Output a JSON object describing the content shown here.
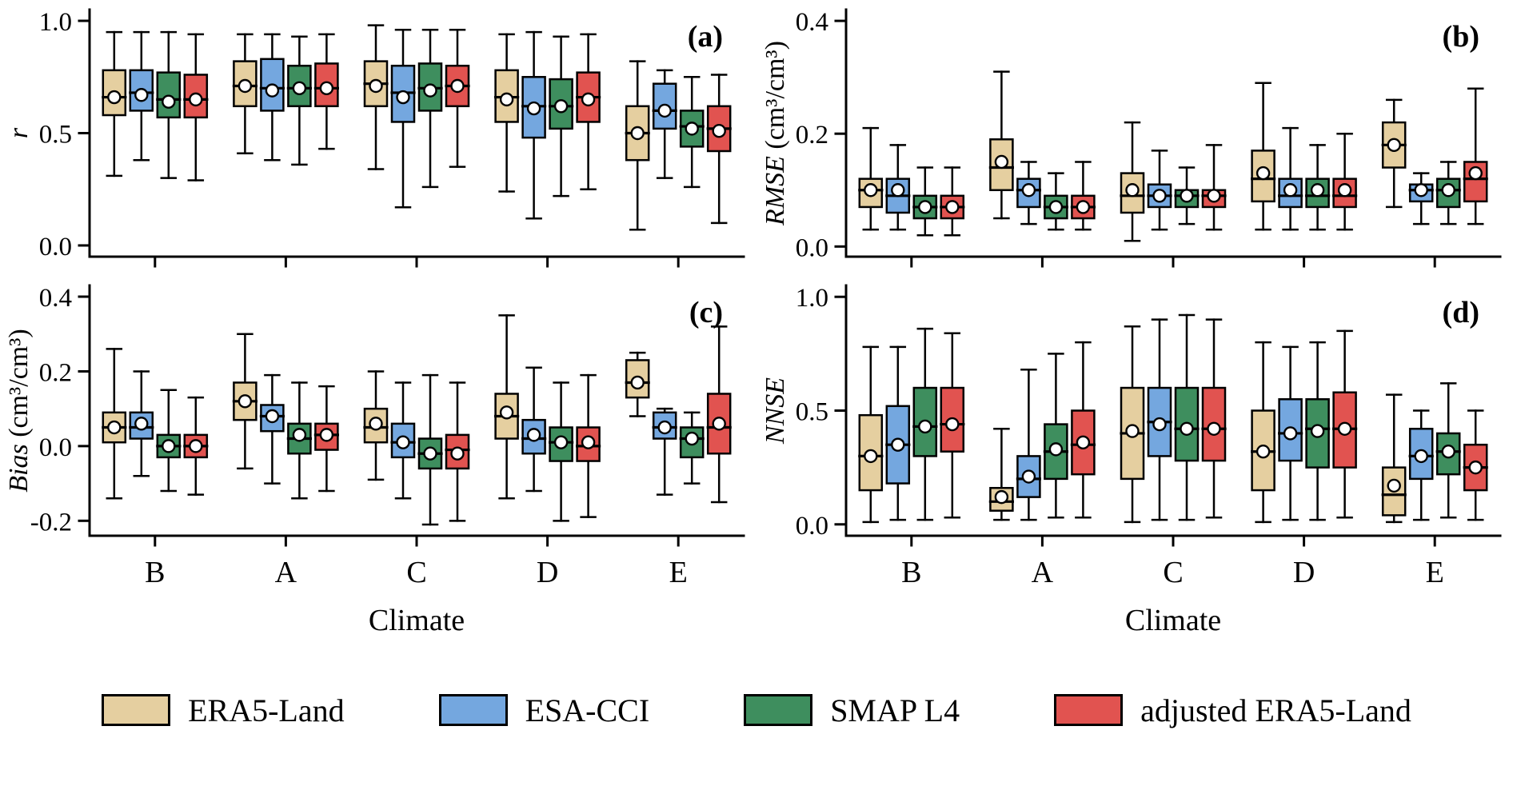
{
  "legend": {
    "entries": [
      {
        "label": "ERA5-Land",
        "color": "#E5CFA0"
      },
      {
        "label": "ESA-CCI",
        "color": "#74A7DF"
      },
      {
        "label": "SMAP L4",
        "color": "#3E8E5E"
      },
      {
        "label": "adjusted ERA5-Land",
        "color": "#E15350"
      }
    ]
  },
  "chart_data": [
    {
      "type": "boxplot",
      "panel_label": "(a)",
      "ylabel": "r",
      "ylabel_unit": "",
      "xlabel": "",
      "show_x_labels": false,
      "categories": [
        "B",
        "A",
        "C",
        "D",
        "E"
      ],
      "ylim": [
        -0.05,
        1.05
      ],
      "ytick_values": [
        0.0,
        0.5,
        1.0
      ],
      "ytick_labels": [
        "0.0",
        "0.5",
        "1.0"
      ],
      "box_format": [
        "whisker_low",
        "q1",
        "median",
        "q3",
        "whisker_high",
        "mean"
      ],
      "series": [
        {
          "name": "ERA5-Land",
          "color": "#E5CFA0",
          "boxes": [
            [
              0.31,
              0.58,
              0.66,
              0.78,
              0.95,
              0.66
            ],
            [
              0.41,
              0.62,
              0.71,
              0.82,
              0.94,
              0.71
            ],
            [
              0.34,
              0.62,
              0.72,
              0.82,
              0.98,
              0.71
            ],
            [
              0.24,
              0.55,
              0.66,
              0.78,
              0.94,
              0.65
            ],
            [
              0.07,
              0.38,
              0.5,
              0.62,
              0.82,
              0.5
            ]
          ]
        },
        {
          "name": "ESA-CCI",
          "color": "#74A7DF",
          "boxes": [
            [
              0.38,
              0.6,
              0.68,
              0.78,
              0.95,
              0.67
            ],
            [
              0.38,
              0.6,
              0.7,
              0.83,
              0.94,
              0.69
            ],
            [
              0.17,
              0.55,
              0.68,
              0.8,
              0.96,
              0.66
            ],
            [
              0.12,
              0.48,
              0.62,
              0.75,
              0.95,
              0.61
            ],
            [
              0.3,
              0.52,
              0.6,
              0.72,
              0.78,
              0.6
            ]
          ]
        },
        {
          "name": "SMAP L4",
          "color": "#3E8E5E",
          "boxes": [
            [
              0.3,
              0.57,
              0.65,
              0.77,
              0.95,
              0.64
            ],
            [
              0.36,
              0.62,
              0.7,
              0.8,
              0.93,
              0.7
            ],
            [
              0.26,
              0.6,
              0.7,
              0.81,
              0.96,
              0.69
            ],
            [
              0.22,
              0.52,
              0.62,
              0.74,
              0.93,
              0.62
            ],
            [
              0.26,
              0.44,
              0.53,
              0.6,
              0.75,
              0.52
            ]
          ]
        },
        {
          "name": "adjusted ERA5-Land",
          "color": "#E15350",
          "boxes": [
            [
              0.29,
              0.57,
              0.65,
              0.76,
              0.94,
              0.65
            ],
            [
              0.43,
              0.62,
              0.7,
              0.81,
              0.94,
              0.7
            ],
            [
              0.35,
              0.62,
              0.71,
              0.8,
              0.96,
              0.71
            ],
            [
              0.25,
              0.55,
              0.66,
              0.77,
              0.94,
              0.65
            ],
            [
              0.1,
              0.42,
              0.52,
              0.62,
              0.76,
              0.51
            ]
          ]
        }
      ]
    },
    {
      "type": "boxplot",
      "panel_label": "(b)",
      "ylabel": "RMSE",
      "ylabel_unit": " (cm³/cm³)",
      "xlabel": "",
      "show_x_labels": false,
      "categories": [
        "B",
        "A",
        "C",
        "D",
        "E"
      ],
      "ylim": [
        -0.018,
        0.42
      ],
      "ytick_values": [
        0.0,
        0.2,
        0.4
      ],
      "ytick_labels": [
        "0.0",
        "0.2",
        "0.4"
      ],
      "box_format": [
        "whisker_low",
        "q1",
        "median",
        "q3",
        "whisker_high",
        "mean"
      ],
      "series": [
        {
          "name": "ERA5-Land",
          "color": "#E5CFA0",
          "boxes": [
            [
              0.03,
              0.07,
              0.1,
              0.12,
              0.21,
              0.1
            ],
            [
              0.05,
              0.1,
              0.14,
              0.19,
              0.31,
              0.15
            ],
            [
              0.01,
              0.06,
              0.09,
              0.13,
              0.22,
              0.1
            ],
            [
              0.03,
              0.08,
              0.12,
              0.17,
              0.29,
              0.13
            ],
            [
              0.07,
              0.14,
              0.18,
              0.22,
              0.26,
              0.18
            ]
          ]
        },
        {
          "name": "ESA-CCI",
          "color": "#74A7DF",
          "boxes": [
            [
              0.03,
              0.06,
              0.09,
              0.12,
              0.18,
              0.1
            ],
            [
              0.04,
              0.07,
              0.1,
              0.12,
              0.15,
              0.1
            ],
            [
              0.03,
              0.07,
              0.09,
              0.11,
              0.17,
              0.09
            ],
            [
              0.03,
              0.07,
              0.09,
              0.12,
              0.21,
              0.1
            ],
            [
              0.04,
              0.08,
              0.1,
              0.11,
              0.13,
              0.1
            ]
          ]
        },
        {
          "name": "SMAP L4",
          "color": "#3E8E5E",
          "boxes": [
            [
              0.02,
              0.05,
              0.07,
              0.09,
              0.14,
              0.07
            ],
            [
              0.03,
              0.05,
              0.07,
              0.09,
              0.13,
              0.07
            ],
            [
              0.04,
              0.07,
              0.09,
              0.1,
              0.14,
              0.09
            ],
            [
              0.03,
              0.07,
              0.09,
              0.12,
              0.18,
              0.1
            ],
            [
              0.04,
              0.07,
              0.1,
              0.12,
              0.15,
              0.1
            ]
          ]
        },
        {
          "name": "adjusted ERA5-Land",
          "color": "#E15350",
          "boxes": [
            [
              0.02,
              0.05,
              0.07,
              0.09,
              0.14,
              0.07
            ],
            [
              0.03,
              0.05,
              0.07,
              0.09,
              0.15,
              0.07
            ],
            [
              0.03,
              0.07,
              0.09,
              0.1,
              0.18,
              0.09
            ],
            [
              0.03,
              0.07,
              0.09,
              0.12,
              0.2,
              0.1
            ],
            [
              0.04,
              0.08,
              0.12,
              0.15,
              0.28,
              0.13
            ]
          ]
        }
      ]
    },
    {
      "type": "boxplot",
      "panel_label": "(c)",
      "ylabel": "Bias",
      "ylabel_unit": " (cm³/cm³)",
      "xlabel": "Climate",
      "show_x_labels": true,
      "categories": [
        "B",
        "A",
        "C",
        "D",
        "E"
      ],
      "ylim": [
        -0.24,
        0.43
      ],
      "ytick_values": [
        -0.2,
        0.0,
        0.2,
        0.4
      ],
      "ytick_labels": [
        "-0.2",
        "0.0",
        "0.2",
        "0.4"
      ],
      "box_format": [
        "whisker_low",
        "q1",
        "median",
        "q3",
        "whisker_high",
        "mean"
      ],
      "series": [
        {
          "name": "ERA5-Land",
          "color": "#E5CFA0",
          "boxes": [
            [
              -0.14,
              0.01,
              0.05,
              0.09,
              0.26,
              0.05
            ],
            [
              -0.06,
              0.07,
              0.12,
              0.17,
              0.3,
              0.12
            ],
            [
              -0.09,
              0.01,
              0.05,
              0.1,
              0.2,
              0.06
            ],
            [
              -0.14,
              0.02,
              0.08,
              0.14,
              0.35,
              0.09
            ],
            [
              0.08,
              0.13,
              0.17,
              0.23,
              0.25,
              0.17
            ]
          ]
        },
        {
          "name": "ESA-CCI",
          "color": "#74A7DF",
          "boxes": [
            [
              -0.08,
              0.02,
              0.05,
              0.09,
              0.2,
              0.06
            ],
            [
              -0.1,
              0.04,
              0.08,
              0.11,
              0.19,
              0.08
            ],
            [
              -0.14,
              -0.03,
              0.01,
              0.06,
              0.17,
              0.01
            ],
            [
              -0.12,
              -0.02,
              0.02,
              0.07,
              0.21,
              0.03
            ],
            [
              -0.13,
              0.02,
              0.05,
              0.09,
              0.1,
              0.05
            ]
          ]
        },
        {
          "name": "SMAP L4",
          "color": "#3E8E5E",
          "boxes": [
            [
              -0.12,
              -0.03,
              0.0,
              0.03,
              0.15,
              0.0
            ],
            [
              -0.14,
              -0.02,
              0.02,
              0.06,
              0.17,
              0.03
            ],
            [
              -0.21,
              -0.06,
              -0.02,
              0.02,
              0.19,
              -0.02
            ],
            [
              -0.2,
              -0.04,
              0.01,
              0.05,
              0.17,
              0.01
            ],
            [
              -0.1,
              -0.03,
              0.02,
              0.05,
              0.09,
              0.02
            ]
          ]
        },
        {
          "name": "adjusted ERA5-Land",
          "color": "#E15350",
          "boxes": [
            [
              -0.13,
              -0.03,
              0.0,
              0.03,
              0.13,
              0.0
            ],
            [
              -0.12,
              -0.01,
              0.03,
              0.06,
              0.16,
              0.03
            ],
            [
              -0.2,
              -0.06,
              -0.01,
              0.03,
              0.17,
              -0.02
            ],
            [
              -0.19,
              -0.04,
              0.0,
              0.05,
              0.19,
              0.01
            ],
            [
              -0.15,
              -0.02,
              0.05,
              0.14,
              0.32,
              0.06
            ]
          ]
        }
      ]
    },
    {
      "type": "boxplot",
      "panel_label": "(d)",
      "ylabel": "NNSE",
      "ylabel_unit": "",
      "xlabel": "Climate",
      "show_x_labels": true,
      "categories": [
        "B",
        "A",
        "C",
        "D",
        "E"
      ],
      "ylim": [
        -0.05,
        1.05
      ],
      "ytick_values": [
        0.0,
        0.5,
        1.0
      ],
      "ytick_labels": [
        "0.0",
        "0.5",
        "1.0"
      ],
      "box_format": [
        "whisker_low",
        "q1",
        "median",
        "q3",
        "whisker_high",
        "mean"
      ],
      "series": [
        {
          "name": "ERA5-Land",
          "color": "#E5CFA0",
          "boxes": [
            [
              0.01,
              0.15,
              0.3,
              0.48,
              0.78,
              0.3
            ],
            [
              0.02,
              0.06,
              0.1,
              0.16,
              0.42,
              0.12
            ],
            [
              0.01,
              0.2,
              0.4,
              0.6,
              0.87,
              0.41
            ],
            [
              0.01,
              0.15,
              0.32,
              0.5,
              0.8,
              0.32
            ],
            [
              0.01,
              0.04,
              0.13,
              0.25,
              0.57,
              0.17
            ]
          ]
        },
        {
          "name": "ESA-CCI",
          "color": "#74A7DF",
          "boxes": [
            [
              0.02,
              0.18,
              0.35,
              0.52,
              0.78,
              0.35
            ],
            [
              0.02,
              0.12,
              0.2,
              0.3,
              0.68,
              0.21
            ],
            [
              0.02,
              0.3,
              0.45,
              0.6,
              0.9,
              0.44
            ],
            [
              0.02,
              0.28,
              0.4,
              0.55,
              0.78,
              0.4
            ],
            [
              0.02,
              0.2,
              0.3,
              0.42,
              0.5,
              0.3
            ]
          ]
        },
        {
          "name": "SMAP L4",
          "color": "#3E8E5E",
          "boxes": [
            [
              0.02,
              0.3,
              0.43,
              0.6,
              0.86,
              0.43
            ],
            [
              0.03,
              0.2,
              0.32,
              0.44,
              0.75,
              0.33
            ],
            [
              0.02,
              0.28,
              0.42,
              0.6,
              0.92,
              0.42
            ],
            [
              0.02,
              0.25,
              0.42,
              0.55,
              0.8,
              0.41
            ],
            [
              0.03,
              0.22,
              0.32,
              0.4,
              0.62,
              0.32
            ]
          ]
        },
        {
          "name": "adjusted ERA5-Land",
          "color": "#E15350",
          "boxes": [
            [
              0.03,
              0.32,
              0.44,
              0.6,
              0.84,
              0.44
            ],
            [
              0.03,
              0.22,
              0.35,
              0.5,
              0.8,
              0.36
            ],
            [
              0.03,
              0.28,
              0.42,
              0.6,
              0.9,
              0.42
            ],
            [
              0.03,
              0.25,
              0.42,
              0.58,
              0.85,
              0.42
            ],
            [
              0.02,
              0.15,
              0.25,
              0.35,
              0.5,
              0.25
            ]
          ]
        }
      ]
    }
  ]
}
